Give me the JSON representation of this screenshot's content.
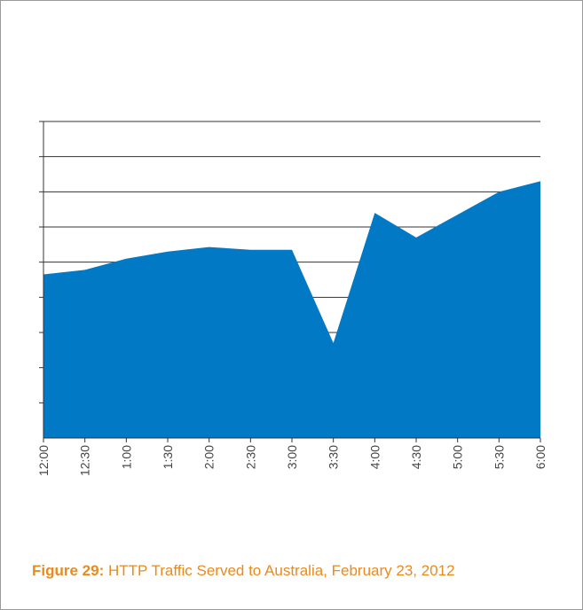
{
  "chart_data": {
    "type": "area",
    "categories": [
      "12:00",
      "12:30",
      "1:00",
      "1:30",
      "2:00",
      "2:30",
      "3:00",
      "3:30",
      "4:00",
      "4:30",
      "5:00",
      "5:30",
      "6:00"
    ],
    "values": [
      4.65,
      4.78,
      5.1,
      5.3,
      5.43,
      5.35,
      5.35,
      2.7,
      6.4,
      5.7,
      6.35,
      7.0,
      7.3
    ],
    "ylim": [
      0,
      9
    ],
    "y_gridlines": 9,
    "grid": true,
    "y_tick_labels": false,
    "title": "",
    "xlabel": "",
    "ylabel": "",
    "fill_color": "#0179c4",
    "grid_color": "#333333"
  },
  "caption": {
    "label": "Figure 29:",
    "text": "HTTP Traffic Served to Australia, February 23, 2012",
    "color": "#e98a1d"
  }
}
